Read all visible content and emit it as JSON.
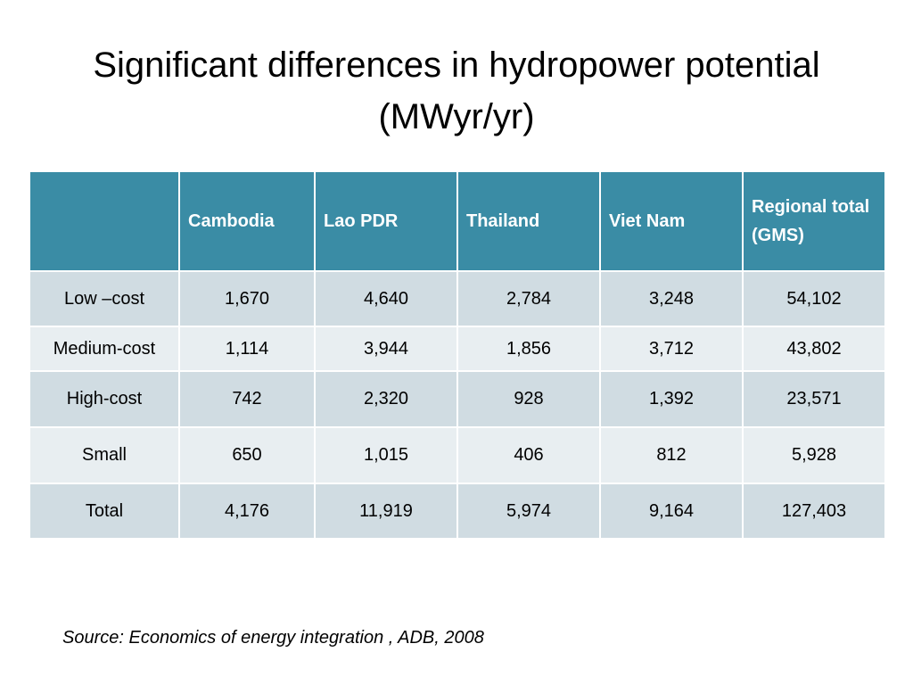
{
  "title": "Significant differences in hydropower potential (MWyr/yr)",
  "table": {
    "columns": [
      "",
      "Cambodia",
      "Lao PDR",
      "Thailand",
      "Viet Nam",
      "Regional total (GMS)"
    ],
    "rows": [
      {
        "label": "Low –cost",
        "values": [
          "1,670",
          "4,640",
          "2,784",
          "3,248",
          "54,102"
        ]
      },
      {
        "label": "Medium-cost",
        "values": [
          "1,114",
          "3,944",
          "1,856",
          "3,712",
          "43,802"
        ]
      },
      {
        "label": "High-cost",
        "values": [
          "742",
          "2,320",
          "928",
          "1,392",
          "23,571"
        ]
      },
      {
        "label": "Small",
        "values": [
          "650",
          "1,015",
          "406",
          "812",
          "5,928"
        ]
      },
      {
        "label": "Total",
        "values": [
          "4,176",
          "11,919",
          "5,974",
          "9,164",
          "127,403"
        ]
      }
    ]
  },
  "source": "Source: Economics of energy integration , ADB, 2008",
  "colors": {
    "header_bg": "#3a8ca5",
    "row_dark": "#d0dce2",
    "row_light": "#e8eef1"
  }
}
